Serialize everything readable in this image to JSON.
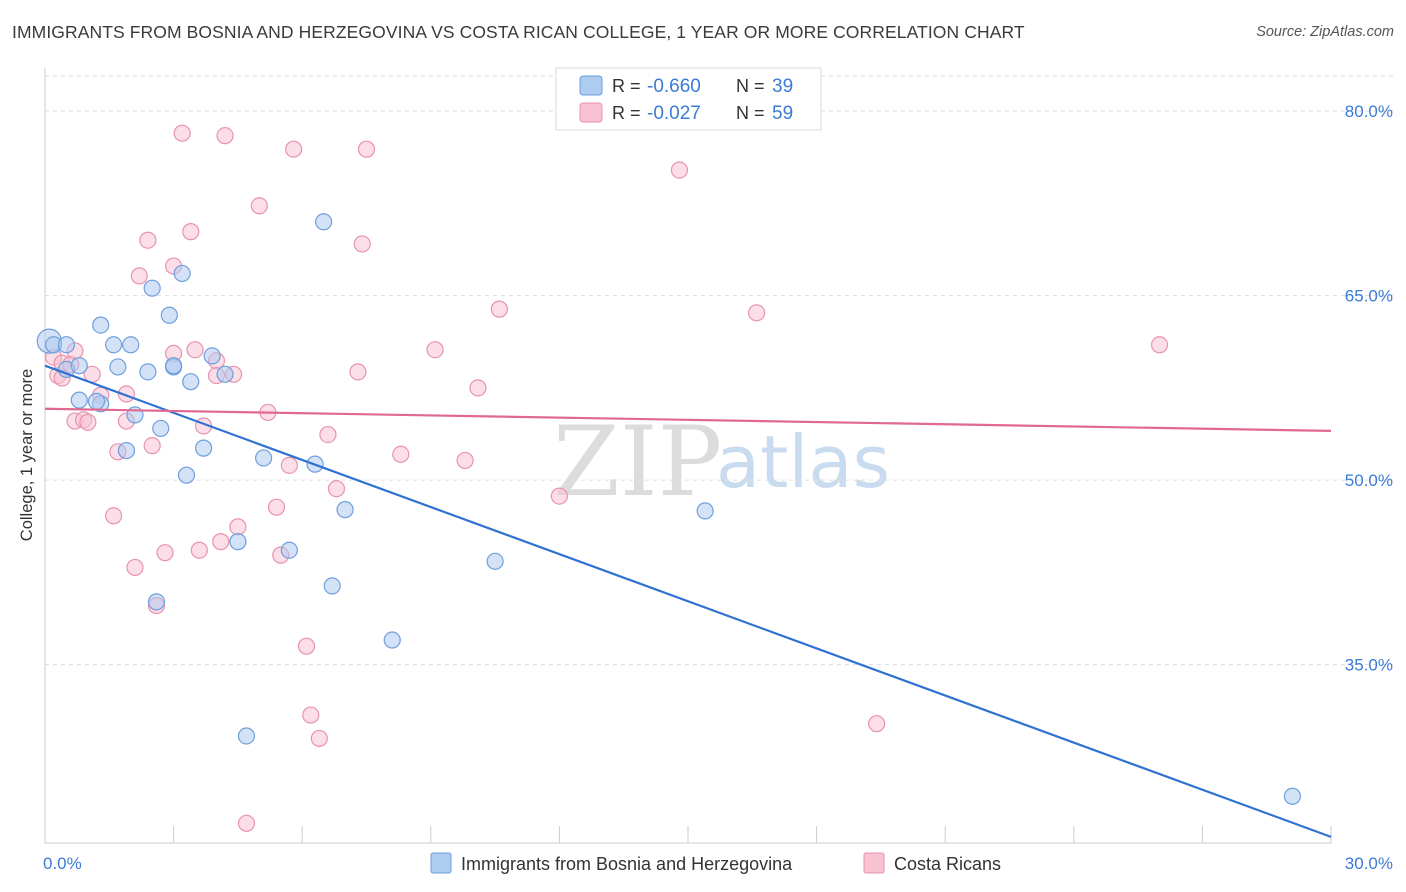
{
  "header": {
    "title": "IMMIGRANTS FROM BOSNIA AND HERZEGOVINA VS COSTA RICAN COLLEGE, 1 YEAR OR MORE CORRELATION CHART",
    "source": "Source: ZipAtlas.com"
  },
  "watermark": {
    "zip": "ZIP",
    "atlas": "atlas"
  },
  "colors": {
    "blue_fill": "#aecbf0",
    "blue_stroke": "#6f9fdc",
    "blue_line": "#2f72d2",
    "pink_fill": "#f7c3d3",
    "pink_stroke": "#e893ad",
    "pink_line": "#e06891",
    "grid": "#dddddd",
    "tick_label": "#3a7bd5"
  },
  "legend": {
    "rows": [
      {
        "r_label": "R = ",
        "r_value": "-0.660",
        "n_label": "N = ",
        "n_value": "39"
      },
      {
        "r_label": "R = ",
        "r_value": "-0.027",
        "n_label": "N = ",
        "n_value": "59"
      }
    ]
  },
  "chart_data": {
    "type": "scatter",
    "title": "IMMIGRANTS FROM BOSNIA AND HERZEGOVINA VS COSTA RICAN COLLEGE, 1 YEAR OR MORE CORRELATION CHART",
    "xlabel": "",
    "ylabel": "College, 1 year or more",
    "xlim": [
      0,
      30
    ],
    "ylim": [
      20.5,
      83.5
    ],
    "x_tick_labels": {
      "min": "0.0%",
      "max": "30.0%"
    },
    "x_minor_ticks": [
      3,
      6,
      9,
      12,
      15,
      18,
      21,
      24,
      27,
      30
    ],
    "y_ticks": [
      {
        "value": 80,
        "label": "80.0%"
      },
      {
        "value": 65,
        "label": "65.0%"
      },
      {
        "value": 50,
        "label": "50.0%"
      },
      {
        "value": 35,
        "label": "35.0%"
      }
    ],
    "grid": true,
    "series": [
      {
        "name": "Immigrants from Bosnia and Herzegovina",
        "R": -0.66,
        "N": 39,
        "trend": {
          "x0": 0,
          "y0": 59.3,
          "x1": 30,
          "y1": 21.0
        },
        "points": [
          [
            0.1,
            61.3
          ],
          [
            0.2,
            61.0
          ],
          [
            0.5,
            61.0
          ],
          [
            0.5,
            59.0
          ],
          [
            0.8,
            59.3
          ],
          [
            0.8,
            56.5
          ],
          [
            1.3,
            56.2
          ],
          [
            1.3,
            62.6
          ],
          [
            1.6,
            61.0
          ],
          [
            1.7,
            59.2
          ],
          [
            1.9,
            52.4
          ],
          [
            2.0,
            61.0
          ],
          [
            2.1,
            55.3
          ],
          [
            2.4,
            58.8
          ],
          [
            2.5,
            65.6
          ],
          [
            2.7,
            54.2
          ],
          [
            2.9,
            63.4
          ],
          [
            3.0,
            59.2
          ],
          [
            3.2,
            66.8
          ],
          [
            3.3,
            50.4
          ],
          [
            3.4,
            58.0
          ],
          [
            3.7,
            52.6
          ],
          [
            3.9,
            60.1
          ],
          [
            4.2,
            58.6
          ],
          [
            4.5,
            45.0
          ],
          [
            4.7,
            29.2
          ],
          [
            5.1,
            51.8
          ],
          [
            5.7,
            44.3
          ],
          [
            6.3,
            51.3
          ],
          [
            6.5,
            71.0
          ],
          [
            6.7,
            41.4
          ],
          [
            7.0,
            47.6
          ],
          [
            8.1,
            37.0
          ],
          [
            10.5,
            43.4
          ],
          [
            15.4,
            47.5
          ],
          [
            29.1,
            24.3
          ],
          [
            2.6,
            40.1
          ],
          [
            1.2,
            56.4
          ],
          [
            3.0,
            59.3
          ]
        ]
      },
      {
        "name": "Costa Ricans",
        "R": -0.027,
        "N": 59,
        "trend": {
          "x0": 0,
          "y0": 55.8,
          "x1": 30,
          "y1": 54.0
        },
        "points": [
          [
            0.2,
            60.0
          ],
          [
            0.3,
            58.5
          ],
          [
            0.4,
            58.3
          ],
          [
            0.4,
            59.5
          ],
          [
            0.6,
            59.4
          ],
          [
            0.7,
            60.5
          ],
          [
            0.7,
            54.8
          ],
          [
            0.9,
            54.9
          ],
          [
            1.0,
            54.7
          ],
          [
            1.1,
            58.6
          ],
          [
            1.3,
            56.9
          ],
          [
            1.6,
            47.1
          ],
          [
            1.7,
            52.3
          ],
          [
            1.9,
            57.0
          ],
          [
            1.9,
            54.8
          ],
          [
            2.1,
            42.9
          ],
          [
            2.2,
            66.6
          ],
          [
            2.4,
            69.5
          ],
          [
            2.5,
            52.8
          ],
          [
            2.6,
            39.8
          ],
          [
            2.8,
            44.1
          ],
          [
            3.0,
            60.3
          ],
          [
            3.0,
            67.4
          ],
          [
            3.2,
            78.2
          ],
          [
            3.4,
            70.2
          ],
          [
            3.5,
            60.6
          ],
          [
            3.6,
            44.3
          ],
          [
            3.7,
            54.4
          ],
          [
            4.0,
            59.7
          ],
          [
            4.0,
            58.5
          ],
          [
            4.1,
            45.0
          ],
          [
            4.2,
            78.0
          ],
          [
            4.4,
            58.6
          ],
          [
            4.5,
            46.2
          ],
          [
            4.7,
            22.1
          ],
          [
            5.0,
            72.3
          ],
          [
            5.2,
            55.5
          ],
          [
            5.4,
            47.8
          ],
          [
            5.5,
            43.9
          ],
          [
            5.7,
            51.2
          ],
          [
            5.8,
            76.9
          ],
          [
            6.1,
            36.5
          ],
          [
            6.2,
            30.9
          ],
          [
            6.4,
            29.0
          ],
          [
            6.6,
            53.7
          ],
          [
            6.8,
            49.3
          ],
          [
            7.3,
            58.8
          ],
          [
            7.4,
            69.2
          ],
          [
            7.5,
            76.9
          ],
          [
            8.3,
            52.1
          ],
          [
            9.1,
            60.6
          ],
          [
            9.8,
            51.6
          ],
          [
            10.1,
            57.5
          ],
          [
            10.6,
            63.9
          ],
          [
            12.0,
            48.7
          ],
          [
            14.8,
            75.2
          ],
          [
            16.6,
            63.6
          ],
          [
            19.4,
            30.2
          ],
          [
            26.0,
            61.0
          ]
        ]
      }
    ]
  },
  "bottom_legend": {
    "items": [
      {
        "label": "Immigrants from Bosnia and Herzegovina"
      },
      {
        "label": "Costa Ricans"
      }
    ]
  }
}
